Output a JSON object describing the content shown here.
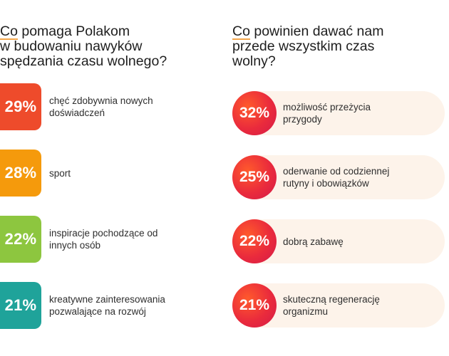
{
  "chart_data": [
    {
      "type": "bar",
      "title_lines": [
        "Co pomaga Polakom",
        "w budowaniu nawyków",
        "spędzania czasu wolnego?"
      ],
      "categories": [
        [
          "chęć zdobywnia nowych",
          "doświadczeń"
        ],
        [
          "sport"
        ],
        [
          "inspiracje pochodzące od",
          "innych osób"
        ],
        [
          "kreatywne zainteresowania",
          "pozwalające na rozwój"
        ]
      ],
      "values": [
        29,
        28,
        22,
        21
      ],
      "value_labels": [
        "29%",
        "28%",
        "22%",
        "21%"
      ],
      "colors": [
        "#ee4b2b",
        "#f59a0c",
        "#8dc63f",
        "#1fa39a"
      ]
    },
    {
      "type": "bar",
      "title_lines": [
        "Co powinien dawać nam",
        "przede wszystkim czas",
        "wolny?"
      ],
      "categories": [
        [
          "możliwość przeżycia",
          "przygody"
        ],
        [
          "oderwanie od codziennej",
          "rutyny i obowiązków"
        ],
        [
          "dobrą zabawę"
        ],
        [
          "skuteczną regenerację",
          "organizmu"
        ]
      ],
      "values": [
        32,
        25,
        22,
        21
      ],
      "value_labels": [
        "32%",
        "25%",
        "22%",
        "21%"
      ],
      "colors": [
        "#e8333a",
        "#fdf3ea"
      ]
    }
  ]
}
